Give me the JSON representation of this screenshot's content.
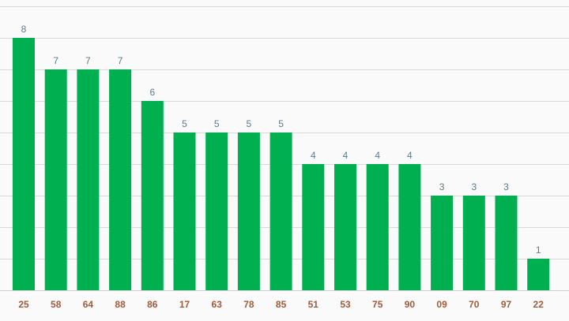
{
  "chart_data": {
    "type": "bar",
    "categories": [
      "25",
      "58",
      "64",
      "88",
      "86",
      "17",
      "63",
      "78",
      "85",
      "51",
      "53",
      "75",
      "90",
      "09",
      "70",
      "97",
      "22"
    ],
    "values": [
      8,
      7,
      7,
      7,
      6,
      5,
      5,
      5,
      5,
      4,
      4,
      4,
      4,
      3,
      3,
      3,
      1
    ],
    "title": "",
    "xlabel": "",
    "ylabel": "",
    "ylim": [
      0,
      9
    ],
    "grid": true,
    "gridlines": [
      0,
      1,
      2,
      3,
      4,
      5,
      6,
      7,
      8,
      9
    ],
    "bar_color": "#00b050",
    "value_label_color": "#5b7a8c",
    "category_label_color": "#a05a3c",
    "legend": "none"
  }
}
